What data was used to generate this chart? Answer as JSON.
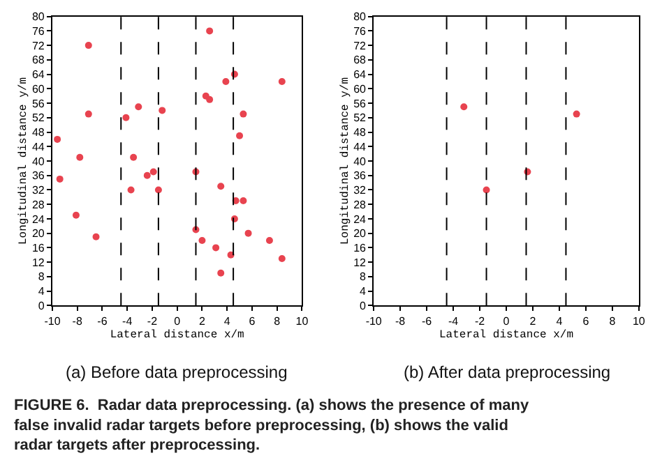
{
  "chart_data": [
    {
      "type": "scatter",
      "title": "(a) Before data preprocessing",
      "xlabel": "Lateral distance x/m",
      "ylabel": "Longitudinal distance y/m",
      "x": [
        2.6,
        -7.1,
        4.6,
        3.9,
        8.4,
        2.3,
        2.6,
        -3.1,
        -1.2,
        -7.1,
        -4.1,
        5.3,
        5.0,
        -9.6,
        -7.8,
        -3.5,
        1.5,
        -1.9,
        -2.4,
        -9.4,
        3.5,
        -3.7,
        -1.5,
        4.7,
        5.3,
        -8.1,
        4.6,
        1.5,
        5.7,
        -6.5,
        2.0,
        7.4,
        3.1,
        4.3,
        8.4,
        3.5
      ],
      "values": [
        76,
        72,
        64,
        62,
        62,
        58,
        57,
        55,
        54,
        53,
        52,
        53,
        47,
        46,
        41,
        41,
        37,
        37,
        36,
        35,
        33,
        32,
        32,
        29,
        29,
        25,
        24,
        21,
        20,
        19,
        18,
        18,
        16,
        14,
        13,
        9
      ],
      "color": "#e8434f",
      "marker": "circle",
      "xlim": [
        -10,
        10
      ],
      "ylim": [
        0,
        80
      ],
      "xticks": [
        -10,
        -8,
        -6,
        -4,
        -2,
        0,
        2,
        4,
        6,
        8,
        10
      ],
      "yticks": [
        0,
        4,
        8,
        12,
        16,
        20,
        24,
        28,
        32,
        36,
        40,
        44,
        48,
        52,
        56,
        60,
        64,
        68,
        72,
        76,
        80
      ],
      "ref_lines": [
        {
          "axis": "x",
          "value": -4.5,
          "color": "#000000",
          "line_style": "dashed"
        },
        {
          "axis": "x",
          "value": -1.5,
          "color": "#000000",
          "line_style": "dashed"
        },
        {
          "axis": "x",
          "value": 1.5,
          "color": "#000000",
          "line_style": "dashed"
        },
        {
          "axis": "x",
          "value": 4.5,
          "color": "#000000",
          "line_style": "dashed"
        }
      ],
      "annotations": [
        "FIGURE 6.  Radar data preprocessing. (a) shows the presence of many false invalid radar targets before preprocessing, (b) shows the valid radar targets after preprocessing."
      ]
    },
    {
      "type": "scatter",
      "title": "(b) After data preprocessing",
      "xlabel": "Lateral distance x/m",
      "ylabel": "Longitudinal distance y/m",
      "x": [
        -3.2,
        -1.5,
        1.6,
        5.3
      ],
      "values": [
        55,
        32,
        37,
        53
      ],
      "color": "#e8434f",
      "marker": "circle",
      "xlim": [
        -10,
        10
      ],
      "ylim": [
        0,
        80
      ],
      "xticks": [
        -10,
        -8,
        -6,
        -4,
        -2,
        0,
        2,
        4,
        6,
        8,
        10
      ],
      "yticks": [
        0,
        4,
        8,
        12,
        16,
        20,
        24,
        28,
        32,
        36,
        40,
        44,
        48,
        52,
        56,
        60,
        64,
        68,
        72,
        76,
        80
      ],
      "ref_lines": [
        {
          "axis": "x",
          "value": -4.5,
          "color": "#000000",
          "line_style": "dashed"
        },
        {
          "axis": "x",
          "value": -1.5,
          "color": "#000000",
          "line_style": "dashed"
        },
        {
          "axis": "x",
          "value": 1.5,
          "color": "#000000",
          "line_style": "dashed"
        },
        {
          "axis": "x",
          "value": 4.5,
          "color": "#000000",
          "line_style": "dashed"
        }
      ]
    }
  ]
}
